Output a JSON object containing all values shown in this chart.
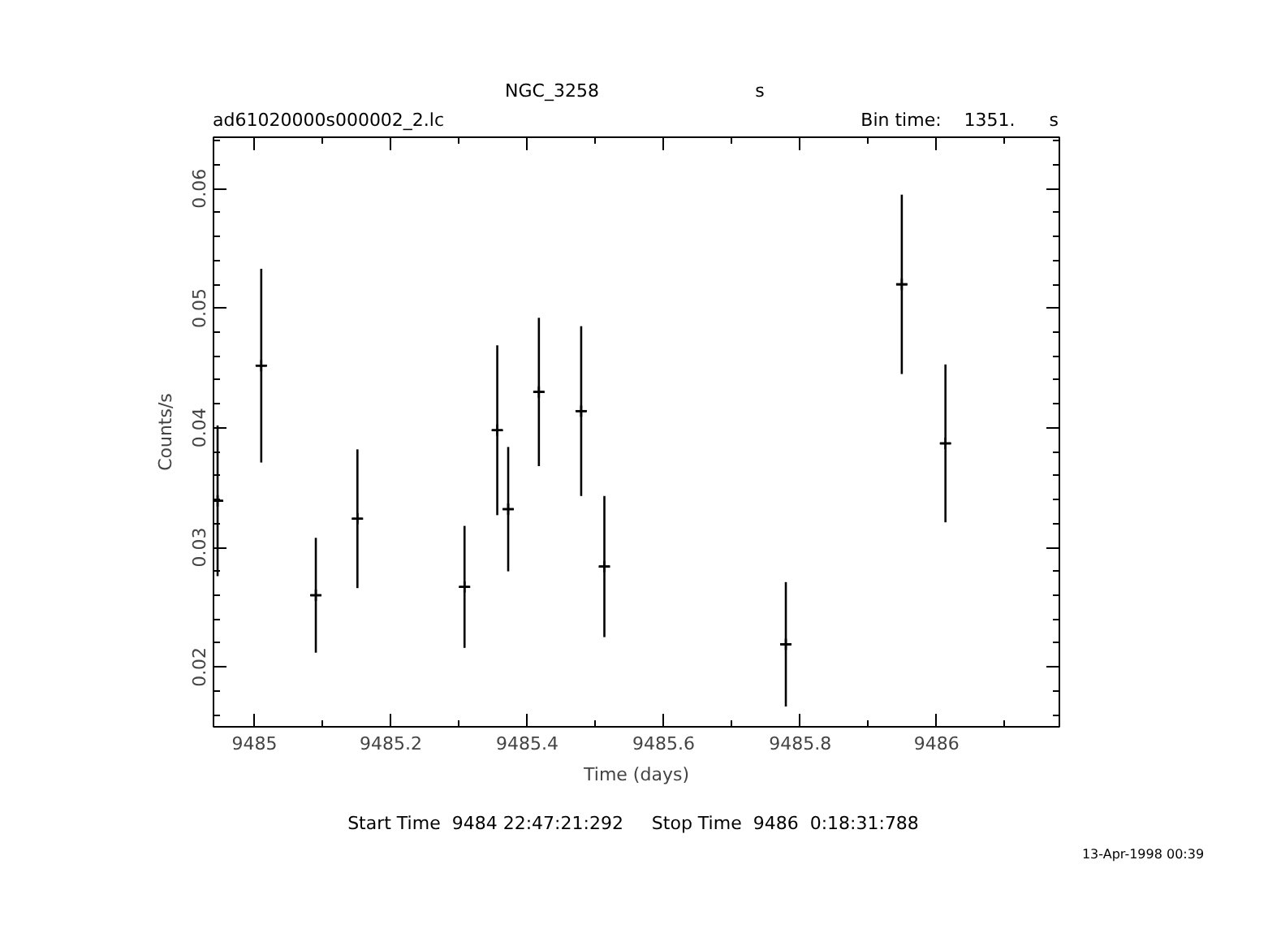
{
  "chart_data": {
    "type": "scatter",
    "title": "NGC_3258",
    "xlabel": "Time (days)",
    "ylabel": "Counts/s",
    "annotations": [
      "s",
      "ad61020000s000002_2.lc",
      "Bin time:    1351.      s",
      "Start Time  9484 22:47:21:292     Stop Time  9486  0:18:31:788",
      "13-Apr-1998 00:39"
    ],
    "x": [
      9484.946,
      9485.01,
      9485.09,
      9485.151,
      9485.308,
      9485.356,
      9485.372,
      9485.417,
      9485.479,
      9485.513,
      9485.779,
      9485.949,
      9486.013
    ],
    "values": [
      0.0339,
      0.0452,
      0.026,
      0.0324,
      0.0267,
      0.0398,
      0.0332,
      0.043,
      0.0414,
      0.0284,
      0.0219,
      0.052,
      0.0387
    ],
    "errors": [
      0.0063,
      0.0081,
      0.0048,
      0.0058,
      0.0051,
      0.0071,
      0.0052,
      0.0062,
      0.0071,
      0.0059,
      0.0052,
      0.0075,
      0.0066
    ],
    "xerrors": [
      0.0078,
      0.0078,
      0.0078,
      0.0078,
      0.0078,
      0.0078,
      0.0078,
      0.0078,
      0.0078,
      0.0078,
      0.0078,
      0.0078,
      0.0078
    ],
    "color": "#000000",
    "marker": "cross",
    "grid": false,
    "xlim": [
      9484.94,
      9486.18
    ],
    "ylim": [
      0.015,
      0.0643
    ],
    "xticks": [
      9485,
      {
        "value": 9485.1,
        "label": null
      },
      9485.2,
      {
        "value": 9485.3,
        "label": null
      },
      9485.4,
      {
        "value": 9485.5,
        "label": null
      },
      9485.6,
      {
        "value": 9485.7,
        "label": null
      },
      9485.8,
      {
        "value": 9485.9,
        "label": null
      },
      9486,
      {
        "value": 9486.1,
        "label": null
      }
    ],
    "yticks": [
      {
        "value": 0.016,
        "label": null
      },
      {
        "value": 0.018,
        "label": null
      },
      0.02,
      {
        "value": 0.022,
        "label": null
      },
      {
        "value": 0.024,
        "label": null
      },
      {
        "value": 0.026,
        "label": null
      },
      {
        "value": 0.028,
        "label": null
      },
      0.03,
      {
        "value": 0.032,
        "label": null
      },
      {
        "value": 0.034,
        "label": null
      },
      {
        "value": 0.036,
        "label": null
      },
      {
        "value": 0.038,
        "label": null
      },
      0.04,
      {
        "value": 0.042,
        "label": null
      },
      {
        "value": 0.044,
        "label": null
      },
      {
        "value": 0.046,
        "label": null
      },
      {
        "value": 0.048,
        "label": null
      },
      0.05,
      {
        "value": 0.052,
        "label": null
      },
      {
        "value": 0.054,
        "label": null
      },
      {
        "value": 0.056,
        "label": null
      },
      {
        "value": 0.058,
        "label": null
      },
      0.06,
      {
        "value": 0.062,
        "label": null
      },
      {
        "value": 0.064,
        "label": null
      }
    ]
  }
}
